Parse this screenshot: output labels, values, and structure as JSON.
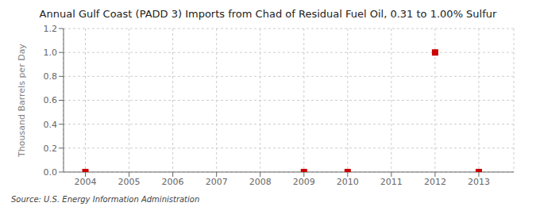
{
  "chart_data": {
    "type": "scatter",
    "title": "Annual Gulf Coast (PADD 3) Imports from Chad of Residual Fuel Oil, 0.31 to 1.00% Sulfur",
    "y_label": "Thousand Barrels per Day",
    "annotations": [
      "Source: U.S. Energy Information Administration"
    ],
    "x": [
      2004,
      2009,
      2010,
      2012,
      2013
    ],
    "values": [
      0.0,
      0.0,
      0.0,
      1.0,
      0.0
    ],
    "color": "#cc0000",
    "marker": "square",
    "xlim": [
      2003.5,
      2013.8
    ],
    "ylim": [
      0.0,
      1.2
    ],
    "xticks": [
      2004,
      2005,
      2006,
      2007,
      2008,
      2009,
      2010,
      2011,
      2012,
      2013
    ],
    "yticks": [
      {
        "value": 0.0,
        "label": "0.0"
      },
      0.2,
      0.4,
      0.6,
      0.8,
      {
        "value": 1.0,
        "label": "1.0"
      },
      1.2
    ],
    "grid": true
  }
}
